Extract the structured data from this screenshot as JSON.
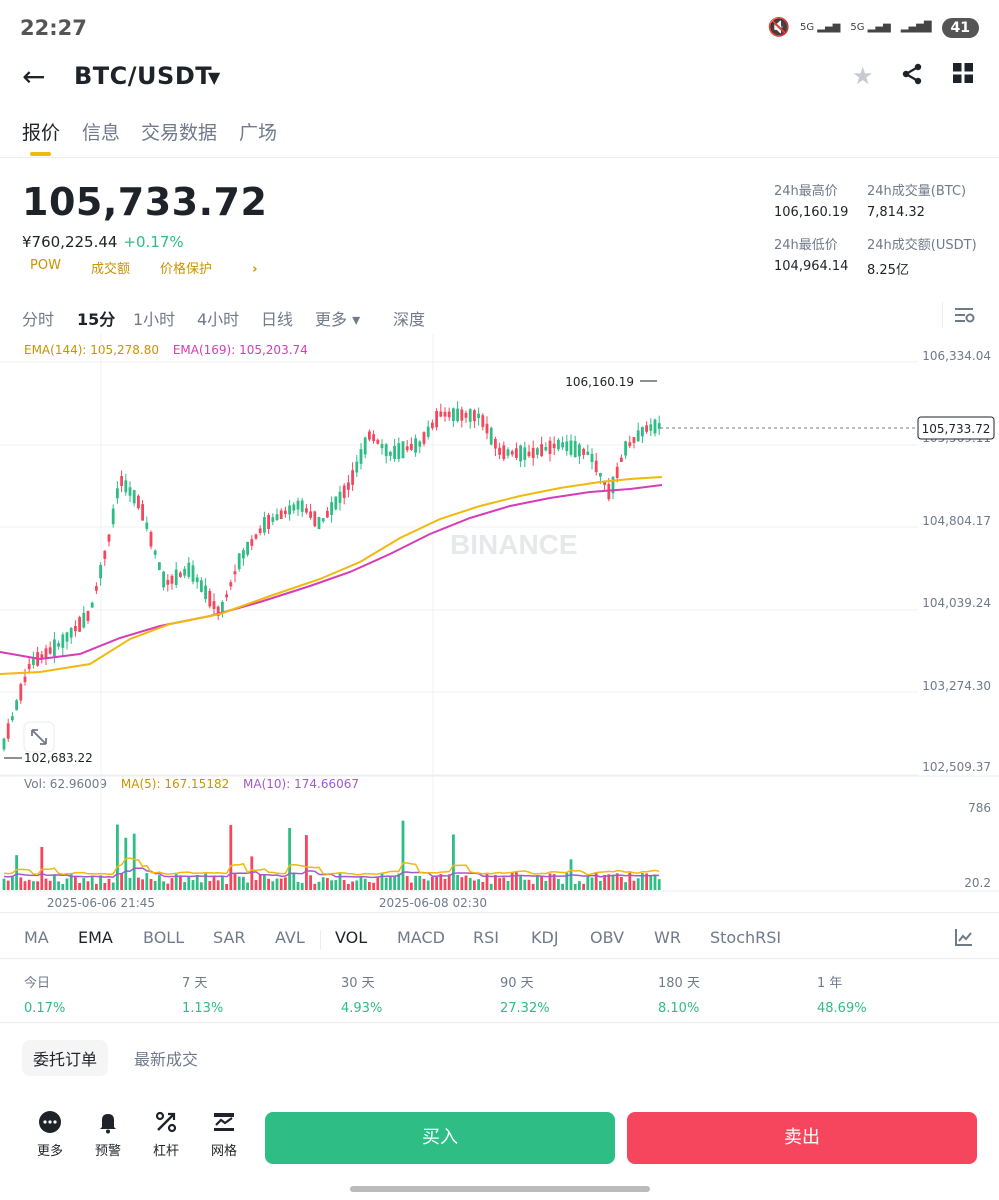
{
  "status": {
    "time": "22:27",
    "signal1": "5G",
    "signal2": "5G",
    "battery": "41"
  },
  "header": {
    "pair": "BTC/USDT",
    "icons": [
      "back-arrow-icon",
      "caret-down-icon",
      "star-icon",
      "share-icon",
      "grid-icon"
    ]
  },
  "tabs": [
    {
      "label": "报价"
    },
    {
      "label": "信息"
    },
    {
      "label": "交易数据"
    },
    {
      "label": "广场"
    }
  ],
  "price": {
    "last": "105,733.72",
    "cny": "¥760,225.44",
    "change": "+0.17%",
    "tags": [
      "POW",
      "成交额",
      "价格保护"
    ],
    "tag_arrow": "›"
  },
  "stats": {
    "high_label": "24h最高价",
    "high_value": "106,160.19",
    "vol_btc_label": "24h成交量(BTC)",
    "vol_btc_value": "7,814.32",
    "low_label": "24h最低价",
    "low_value": "104,964.14",
    "vol_usdt_label": "24h成交额(USDT)",
    "vol_usdt_value": "8.25亿"
  },
  "intervals": [
    {
      "label": "分时"
    },
    {
      "label": "15分"
    },
    {
      "label": "1小时"
    },
    {
      "label": "4小时"
    },
    {
      "label": "日线"
    },
    {
      "label": "更多 ▾"
    },
    {
      "label": "深度"
    }
  ],
  "ema_legend": {
    "ema144": "EMA(144): 105,278.80",
    "ema169": "EMA(169): 105,203.74"
  },
  "vol_legend": {
    "vol": "Vol: 62.96009",
    "ma5": "MA(5): 167.15182",
    "ma10": "MA(10): 174.66067"
  },
  "colors": {
    "up": "#2ebd85",
    "down": "#f6465d",
    "ema144": "#f0b90b",
    "ema169": "#d63cb8",
    "ma5": "#f0b90b",
    "ma10": "#a259cf"
  },
  "chart_data": {
    "type": "candlestick",
    "y_ticks": [
      "106,334.04",
      "105,569.11",
      "104,804.17",
      "104,039.24",
      "103,274.30",
      "102,509.37"
    ],
    "ylim": [
      102509.37,
      106334.04
    ],
    "x_ticks": [
      "2025-06-06 21:45",
      "2025-06-08 02:30"
    ],
    "high_label": "106,160.19",
    "low_label": "102,683.22",
    "last_price_label": "105,733.72",
    "watermark": "BINANCE",
    "vol_ticks": [
      "786",
      "20.2"
    ]
  },
  "indicators": [
    {
      "label": "MA"
    },
    {
      "label": "EMA"
    },
    {
      "label": "BOLL"
    },
    {
      "label": "SAR"
    },
    {
      "label": "AVL"
    },
    {
      "label": "VOL"
    },
    {
      "label": "MACD"
    },
    {
      "label": "RSI"
    },
    {
      "label": "KDJ"
    },
    {
      "label": "OBV"
    },
    {
      "label": "WR"
    },
    {
      "label": "StochRSI"
    }
  ],
  "performance": [
    {
      "label": "今日",
      "value": "0.17%"
    },
    {
      "label": "7 天",
      "value": "1.13%"
    },
    {
      "label": "30 天",
      "value": "4.93%"
    },
    {
      "label": "90 天",
      "value": "27.32%"
    },
    {
      "label": "180 天",
      "value": "8.10%"
    },
    {
      "label": "1 年",
      "value": "48.69%"
    }
  ],
  "order_tabs": [
    {
      "label": "委托订单"
    },
    {
      "label": "最新成交"
    }
  ],
  "bottom_nav": [
    {
      "label": "更多"
    },
    {
      "label": "预警"
    },
    {
      "label": "杠杆"
    },
    {
      "label": "网格"
    }
  ],
  "actions": {
    "buy": "买入",
    "sell": "卖出"
  }
}
